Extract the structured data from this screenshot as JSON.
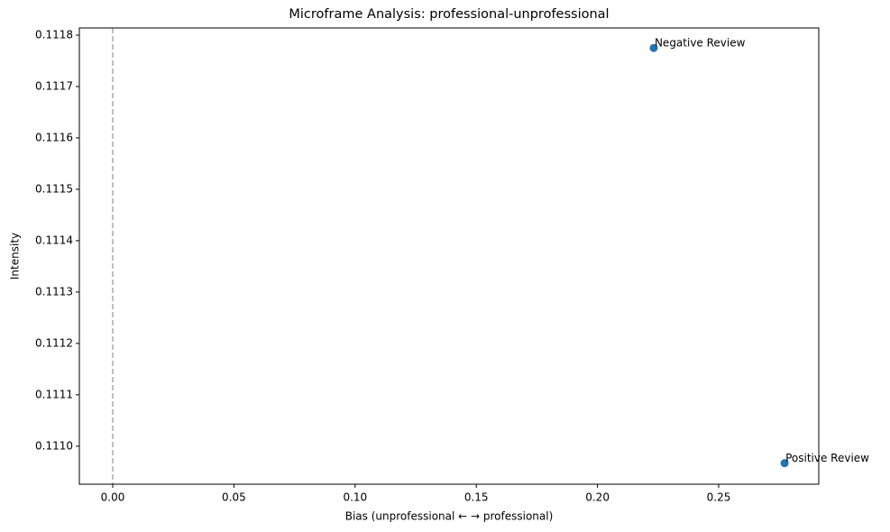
{
  "chart_data": {
    "type": "scatter",
    "title": "Microframe Analysis: professional-unprofessional",
    "x_label": "Bias (unprofessional ← → professional)",
    "y_label": "Intensity",
    "series": [
      {
        "name": null,
        "color": "#1f77b4",
        "x": [
          0.2232,
          0.2772
        ],
        "values": [
          0.111775,
          0.110967
        ],
        "labels": [
          "Negative Review",
          "Positive Review"
        ]
      }
    ],
    "xlim": [
      -0.01377,
      0.2913
    ],
    "ylim": [
      0.110926,
      0.111814
    ],
    "xticks": [
      {
        "value": 0,
        "label": "0.00"
      },
      0.05,
      {
        "value": 0.1,
        "label": "0.10"
      },
      0.15,
      {
        "value": 0.2,
        "label": "0.20"
      },
      0.25
    ],
    "yticks": [
      {
        "value": 0.111,
        "label": "0.1110"
      },
      0.1111,
      0.1112,
      0.1113,
      0.1114,
      0.1115,
      0.1116,
      0.1117,
      0.1118
    ],
    "vline": 0,
    "vline_color": "#aaaaaa",
    "grid": false
  }
}
